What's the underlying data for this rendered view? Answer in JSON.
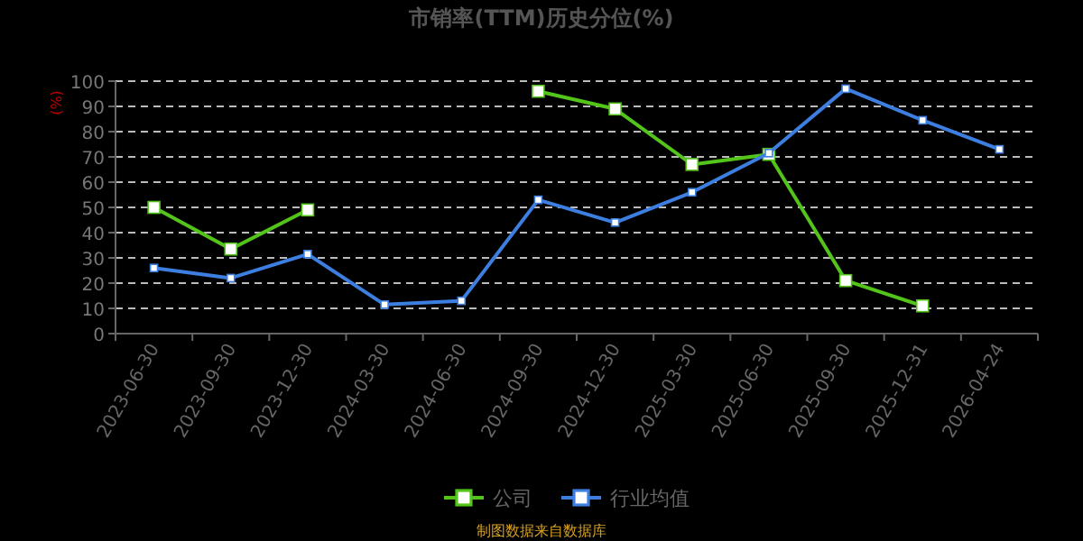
{
  "chart_data": {
    "type": "line",
    "title": "市销率(TTM)历史分位(%)",
    "ylabel": "(%)",
    "categories": [
      "2023-06-30",
      "2023-09-30",
      "2023-12-30",
      "2024-03-30",
      "2024-06-30",
      "2024-09-30",
      "2024-12-30",
      "2025-03-30",
      "2025-06-30",
      "2025-09-30",
      "2025-12-31",
      "2026-04-24"
    ],
    "series": [
      {
        "name": "公司",
        "color": "#52c41a",
        "values": [
          50,
          33.5,
          49,
          null,
          null,
          96,
          89,
          67,
          71,
          21,
          11,
          null
        ]
      },
      {
        "name": "行业均值",
        "color": "#3d7fe0",
        "values": [
          26,
          22,
          31.5,
          11.5,
          13,
          53,
          44,
          56,
          71.5,
          97,
          84.5,
          73
        ]
      }
    ],
    "ylim": [
      0,
      100
    ],
    "yticks": [
      0,
      10,
      20,
      30,
      40,
      50,
      60,
      70,
      80,
      90,
      100
    ],
    "grid": "y",
    "legend": "bottom",
    "marker": "square",
    "line_style": "solid",
    "annotations": [
      "制图数据来自数据库"
    ]
  }
}
